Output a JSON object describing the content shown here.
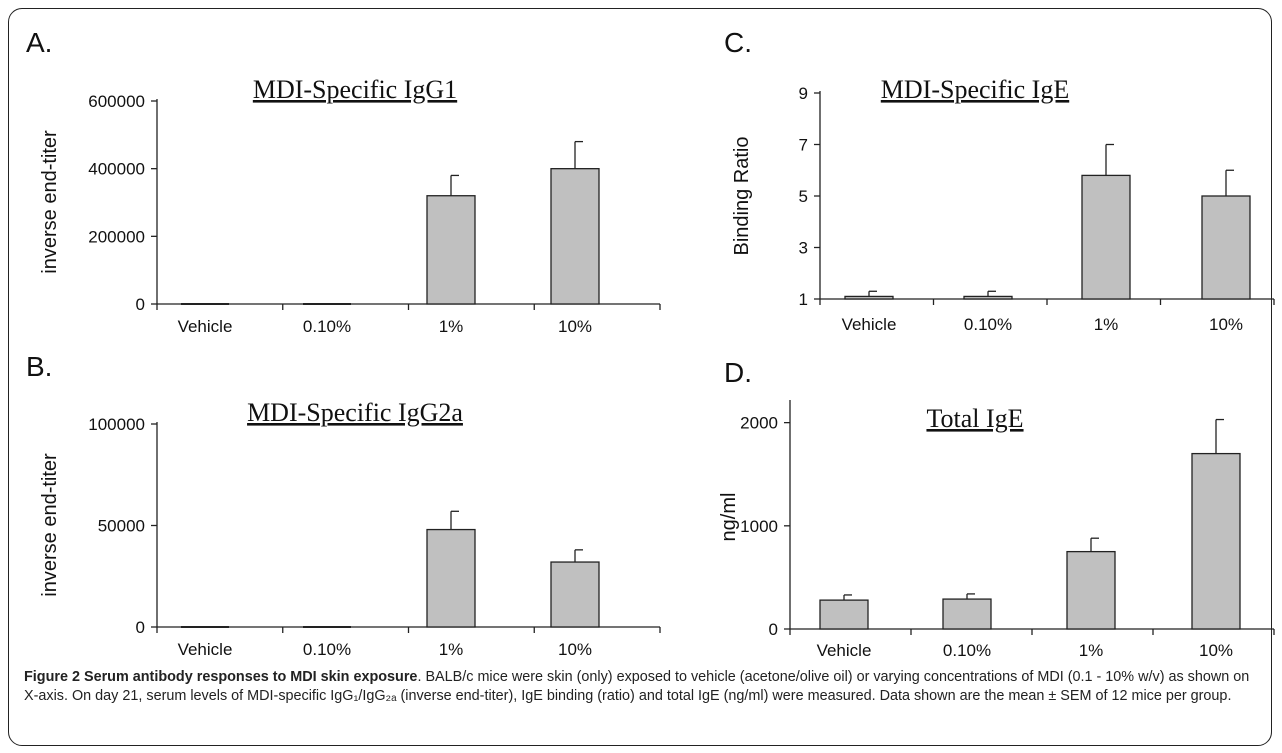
{
  "chart_data": [
    {
      "panel": "A.",
      "type": "bar",
      "title": "MDI-Specific IgG1",
      "ylabel": "inverse end-titer",
      "categories": [
        "Vehicle",
        "0.10%",
        "1%",
        "10%"
      ],
      "values": [
        0,
        0,
        320000,
        400000
      ],
      "errors": [
        0,
        0,
        60000,
        80000
      ],
      "ylim": [
        0,
        600000
      ],
      "yticks": [
        "0",
        "200000",
        "400000",
        "600000"
      ],
      "ytick_values": [
        0,
        200000,
        400000,
        600000
      ],
      "bar_color": "#c0c0c0"
    },
    {
      "panel": "B.",
      "type": "bar",
      "title": "MDI-Specific IgG2a",
      "ylabel": "inverse end-titer",
      "categories": [
        "Vehicle",
        "0.10%",
        "1%",
        "10%"
      ],
      "values": [
        0,
        0,
        48000,
        32000
      ],
      "errors": [
        0,
        0,
        9000,
        6000
      ],
      "ylim": [
        0,
        100000
      ],
      "yticks": [
        "0",
        "50000",
        "100000"
      ],
      "ytick_values": [
        0,
        50000,
        100000
      ],
      "bar_color": "#c0c0c0"
    },
    {
      "panel": "C.",
      "type": "bar",
      "title": "MDI-Specific IgE",
      "ylabel": "Binding Ratio",
      "categories": [
        "Vehicle",
        "0.10%",
        "1%",
        "10%"
      ],
      "values": [
        1.1,
        1.1,
        5.8,
        5.0
      ],
      "errors": [
        0.2,
        0.2,
        1.2,
        1.0
      ],
      "ylim": [
        1,
        9
      ],
      "yticks": [
        "1",
        "3",
        "5",
        "7",
        "9"
      ],
      "ytick_values": [
        1,
        3,
        5,
        7,
        9
      ],
      "bar_color": "#c0c0c0"
    },
    {
      "panel": "D.",
      "type": "bar",
      "title": "Total IgE",
      "ylabel": "ng/ml",
      "categories": [
        "Vehicle",
        "0.10%",
        "1%",
        "10%"
      ],
      "values": [
        280,
        290,
        750,
        1700
      ],
      "errors": [
        50,
        50,
        130,
        330
      ],
      "ylim": [
        0,
        2200
      ],
      "yticks": [
        "0",
        "1000",
        "2000"
      ],
      "ytick_values": [
        0,
        1000,
        2000
      ],
      "bar_color": "#c0c0c0"
    }
  ],
  "caption": {
    "bold": "Figure 2 Serum antibody responses to MDI skin exposure",
    "text": ". BALB/c mice were skin (only) exposed to vehicle (acetone/olive oil) or varying concentrations of MDI (0.1 - 10% w/v) as shown on X-axis. On day 21, serum levels of MDI-specific IgG₁/IgG₂ₐ (inverse end-titer), IgE binding (ratio) and total IgE (ng/ml) were measured. Data shown are the mean ± SEM of 12 mice per group."
  }
}
